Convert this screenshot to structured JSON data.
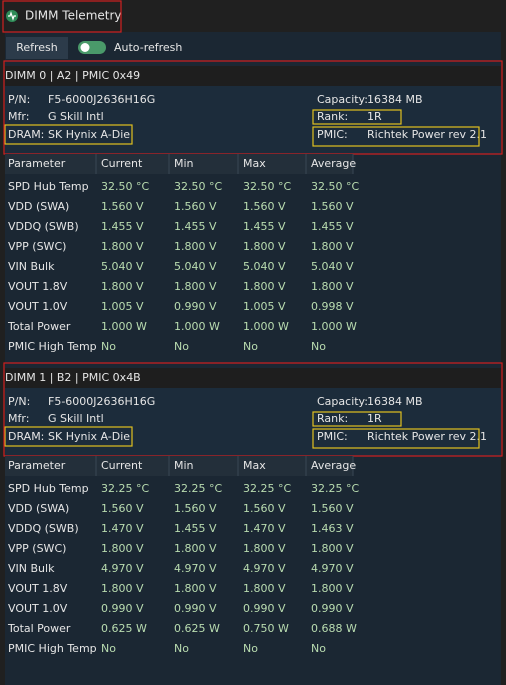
{
  "window": {
    "title": "DIMM Telemetry"
  },
  "toolbar": {
    "refresh": "Refresh",
    "auto_refresh": "Auto-refresh"
  },
  "dimms": [
    {
      "header": "DIMM 0 | A2 | PMIC 0x49",
      "info": {
        "pn_label": "P/N:",
        "pn": "F5-6000J2636H16G",
        "mfr_label": "Mfr:",
        "mfr": "G Skill Intl",
        "dram_label": "DRAM:",
        "dram": "SK Hynix A-Die",
        "capacity_label": "Capacity:",
        "capacity": "16384 MB",
        "rank_label": "Rank:",
        "rank": "1R",
        "pmic_label": "PMIC:",
        "pmic": "Richtek Power rev 2.1"
      },
      "table": {
        "columns": [
          "Parameter",
          "Current",
          "Min",
          "Max",
          "Average"
        ],
        "rows": [
          [
            "SPD Hub Temp",
            "32.50 °C",
            "32.50 °C",
            "32.50 °C",
            "32.50 °C"
          ],
          [
            "VDD (SWA)",
            "1.560 V",
            "1.560 V",
            "1.560 V",
            "1.560 V"
          ],
          [
            "VDDQ (SWB)",
            "1.455 V",
            "1.455 V",
            "1.455 V",
            "1.455 V"
          ],
          [
            "VPP (SWC)",
            "1.800 V",
            "1.800 V",
            "1.800 V",
            "1.800 V"
          ],
          [
            "VIN Bulk",
            "5.040 V",
            "5.040 V",
            "5.040 V",
            "5.040 V"
          ],
          [
            "VOUT 1.8V",
            "1.800 V",
            "1.800 V",
            "1.800 V",
            "1.800 V"
          ],
          [
            "VOUT 1.0V",
            "1.005 V",
            "0.990 V",
            "1.005 V",
            "0.998 V"
          ],
          [
            "Total Power",
            "1.000 W",
            "1.000 W",
            "1.000 W",
            "1.000 W"
          ],
          [
            "PMIC High Temp",
            "No",
            "No",
            "No",
            "No"
          ]
        ]
      }
    },
    {
      "header": "DIMM 1 | B2 | PMIC 0x4B",
      "info": {
        "pn_label": "P/N:",
        "pn": "F5-6000J2636H16G",
        "mfr_label": "Mfr:",
        "mfr": "G Skill Intl",
        "dram_label": "DRAM:",
        "dram": "SK Hynix A-Die",
        "capacity_label": "Capacity:",
        "capacity": "16384 MB",
        "rank_label": "Rank:",
        "rank": "1R",
        "pmic_label": "PMIC:",
        "pmic": "Richtek Power rev 2.1"
      },
      "table": {
        "columns": [
          "Parameter",
          "Current",
          "Min",
          "Max",
          "Average"
        ],
        "rows": [
          [
            "SPD Hub Temp",
            "32.25 °C",
            "32.25 °C",
            "32.25 °C",
            "32.25 °C"
          ],
          [
            "VDD (SWA)",
            "1.560 V",
            "1.560 V",
            "1.560 V",
            "1.560 V"
          ],
          [
            "VDDQ (SWB)",
            "1.470 V",
            "1.455 V",
            "1.470 V",
            "1.463 V"
          ],
          [
            "VPP (SWC)",
            "1.800 V",
            "1.800 V",
            "1.800 V",
            "1.800 V"
          ],
          [
            "VIN Bulk",
            "4.970 V",
            "4.970 V",
            "4.970 V",
            "4.970 V"
          ],
          [
            "VOUT 1.8V",
            "1.800 V",
            "1.800 V",
            "1.800 V",
            "1.800 V"
          ],
          [
            "VOUT 1.0V",
            "0.990 V",
            "0.990 V",
            "0.990 V",
            "0.990 V"
          ],
          [
            "Total Power",
            "0.625 W",
            "0.625 W",
            "0.750 W",
            "0.688 W"
          ],
          [
            "PMIC High Temp",
            "No",
            "No",
            "No",
            "No"
          ]
        ]
      }
    }
  ]
}
